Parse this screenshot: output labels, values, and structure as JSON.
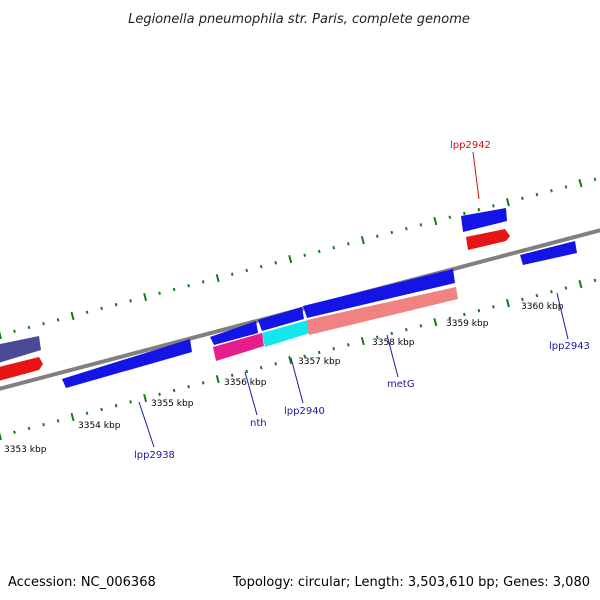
{
  "title": "Legionella pneumophila str. Paris, complete genome",
  "footer": {
    "accession": "Accession: NC_006368",
    "topology": "Topology: circular; Length: 3,503,610 bp; Genes: 3,080"
  },
  "colors": {
    "backbone": "#808080",
    "tick": "#1a7a1a",
    "forward_gene": "#1414e6",
    "reverse_gene": "#e61414",
    "dark_gene": "#4a4a96",
    "magenta_gene": "#e61e8c",
    "cyan_gene": "#14e6f0",
    "salmon_gene": "#f08282",
    "label_blue": "#1a1aa0",
    "label_red": "#c81414"
  },
  "kbp_labels": [
    "3353 kbp",
    "3354 kbp",
    "3355 kbp",
    "3356 kbp",
    "3357 kbp",
    "3358 kbp",
    "3359 kbp",
    "3360 kbp"
  ],
  "gene_labels": [
    {
      "name": "lpp2938",
      "color": "label_blue"
    },
    {
      "name": "nth",
      "color": "label_blue"
    },
    {
      "name": "lpp2940",
      "color": "label_blue"
    },
    {
      "name": "metG",
      "color": "label_blue"
    },
    {
      "name": "lpp2942",
      "color": "label_red"
    },
    {
      "name": "lpp2943",
      "color": "label_blue"
    }
  ]
}
